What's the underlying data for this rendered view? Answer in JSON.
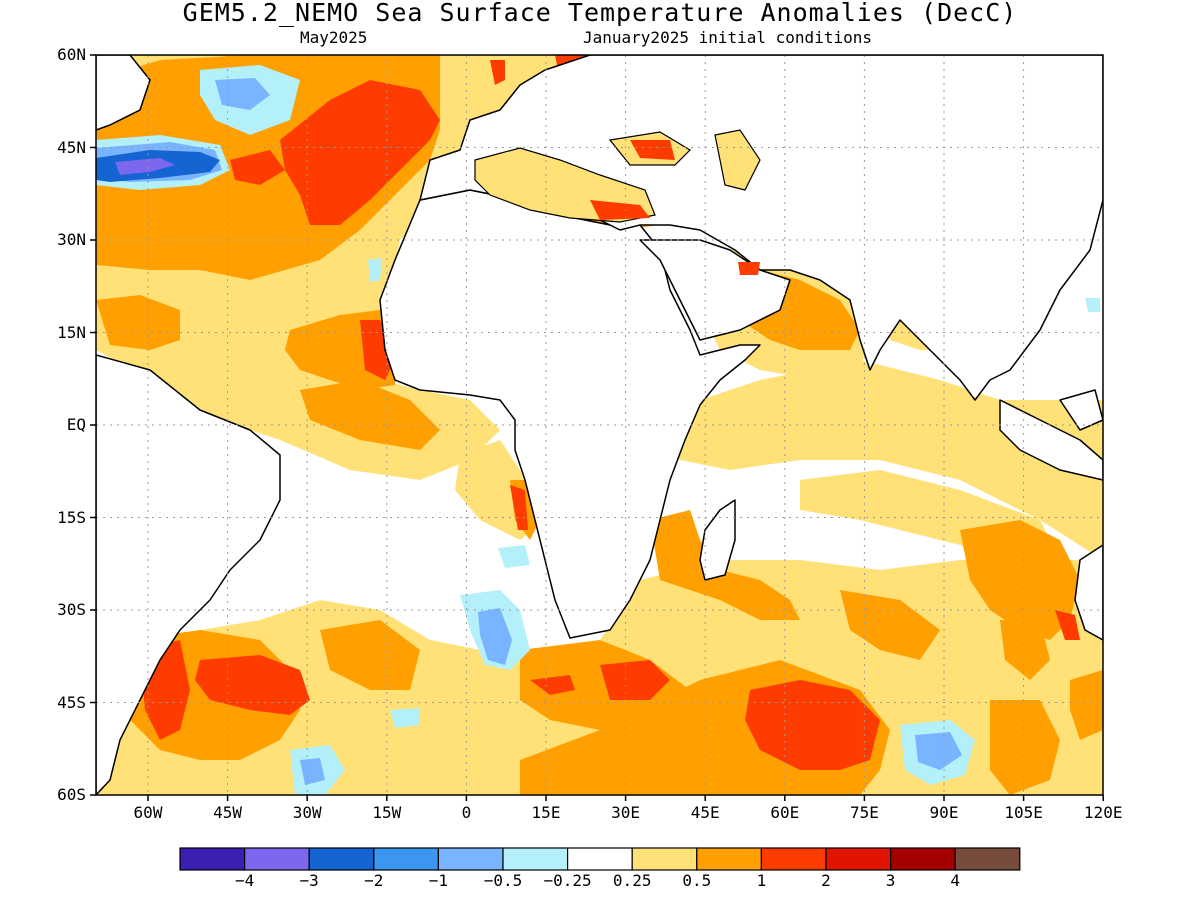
{
  "title": "GEM5.2_NEMO Sea Surface Temperature Anomalies (DecC)",
  "subtitle_left": "May2025",
  "subtitle_right": "January2025 initial conditions",
  "lat_labels": [
    "60N",
    "45N",
    "30N",
    "15N",
    "EQ",
    "15S",
    "30S",
    "45S",
    "60S"
  ],
  "lon_labels": [
    "60W",
    "45W",
    "30W",
    "15W",
    "0",
    "15E",
    "30E",
    "45E",
    "60E",
    "75E",
    "90E",
    "105E",
    "120E"
  ],
  "colorbar": {
    "colors": [
      "#3a1fb0",
      "#7b68ee",
      "#1464d2",
      "#3c96f0",
      "#78b4ff",
      "#b4f0fa",
      "#ffffff",
      "#ffe178",
      "#ffa000",
      "#ff3c00",
      "#e11400",
      "#a50000",
      "#784c3c"
    ],
    "labels": [
      "−4",
      "−3",
      "−2",
      "−1",
      "−0.5",
      "−0.25",
      "0.25",
      "0.5",
      "1",
      "2",
      "3",
      "4"
    ]
  }
}
